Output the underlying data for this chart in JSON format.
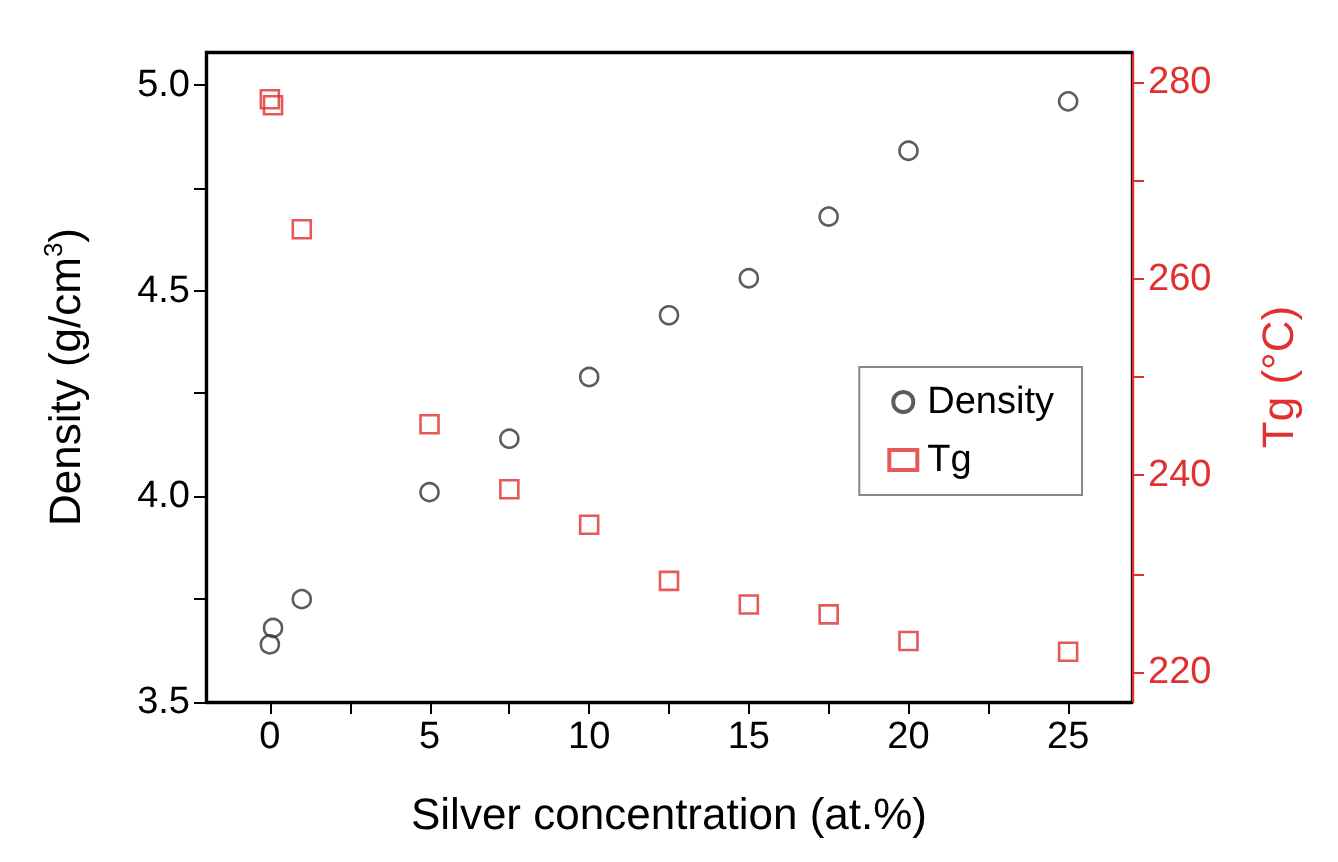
{
  "chart_data": {
    "type": "scatter",
    "xlabel": "Silver concentration (at.%)",
    "ylabel": "Density (g/cm$^{3}$)",
    "y2label": "Tg (°C)",
    "xlim": [
      -2,
      27
    ],
    "xticks": [
      0,
      {
        "value": 2.5,
        "label": null
      },
      5,
      {
        "value": 7.5,
        "label": null
      },
      10,
      {
        "value": 12.5,
        "label": null
      },
      15,
      {
        "value": 17.5,
        "label": null
      },
      20,
      {
        "value": 22.5,
        "label": null
      },
      25
    ],
    "ylim": [
      3.5,
      5.08
    ],
    "yticks": [
      {
        "value": 3.5,
        "label": "3.5"
      },
      {
        "value": 3.75,
        "label": null
      },
      {
        "value": 4.0,
        "label": "4.0"
      },
      {
        "value": 4.25,
        "label": null
      },
      {
        "value": 4.5,
        "label": "4.5"
      },
      {
        "value": 4.75,
        "label": null
      },
      {
        "value": 5.0,
        "label": "5.0"
      }
    ],
    "y2lim": [
      217,
      283
    ],
    "y2ticks": [
      220,
      {
        "value": 230,
        "label": null
      },
      240,
      {
        "value": 250,
        "label": null
      },
      260,
      {
        "value": 270,
        "label": null
      },
      280
    ],
    "grid": false,
    "legend": "right",
    "series": [
      {
        "name": "Density",
        "color": "#333333",
        "marker": "circle",
        "x": [
          0,
          0.1,
          1,
          5,
          7.5,
          10,
          12.5,
          15,
          17.5,
          20,
          25
        ],
        "values": [
          3.64,
          3.68,
          3.75,
          4.01,
          4.14,
          4.29,
          4.44,
          4.53,
          4.68,
          4.84,
          4.96
        ]
      },
      {
        "name": "Tg",
        "color": "#e03030",
        "marker": "square",
        "axis": "y2",
        "x": [
          0,
          0.1,
          1,
          5,
          7.5,
          10,
          12.5,
          15,
          17.5,
          20,
          25
        ],
        "values": [
          278.2,
          277.6,
          265.0,
          245.2,
          238.6,
          235.0,
          229.3,
          226.9,
          225.9,
          223.2,
          222.1
        ]
      }
    ]
  }
}
